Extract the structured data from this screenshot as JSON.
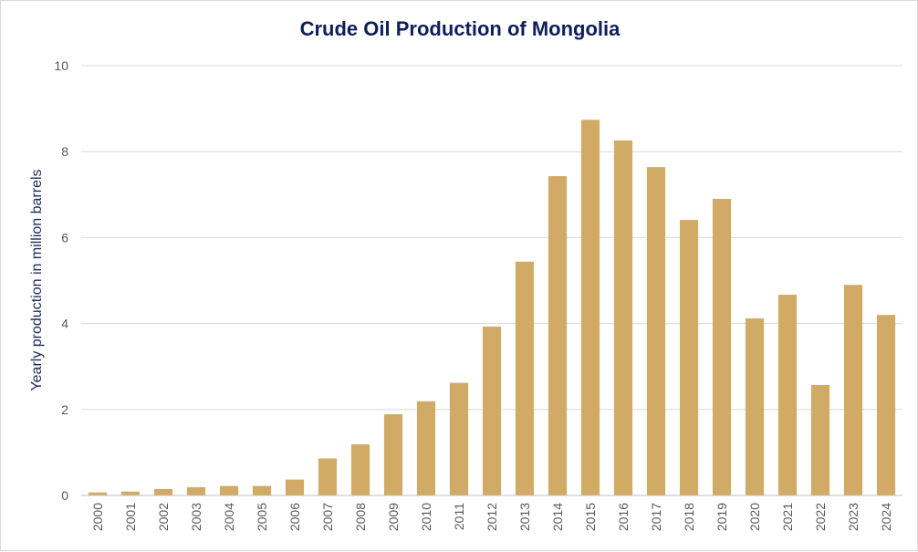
{
  "chart_data": {
    "type": "bar",
    "title": "Crude Oil Production of Mongolia",
    "xlabel": "",
    "ylabel": "Yearly production in million barrels",
    "ylim": [
      0,
      10
    ],
    "yticks": [
      0,
      2,
      4,
      6,
      8,
      10
    ],
    "grid": true,
    "legend": "none",
    "bar_color": "#d1ab66",
    "categories": [
      "2000",
      "2001",
      "2002",
      "2003",
      "2004",
      "2005",
      "2006",
      "2007",
      "2008",
      "2009",
      "2010",
      "2011",
      "2012",
      "2013",
      "2014",
      "2015",
      "2016",
      "2017",
      "2018",
      "2019",
      "2020",
      "2021",
      "2022",
      "2023",
      "2024"
    ],
    "values": [
      0.07,
      0.09,
      0.15,
      0.19,
      0.22,
      0.22,
      0.37,
      0.86,
      1.19,
      1.89,
      2.19,
      2.62,
      3.93,
      5.44,
      7.43,
      8.74,
      8.26,
      7.64,
      6.41,
      6.9,
      4.12,
      4.67,
      2.57,
      4.9,
      4.2
    ]
  }
}
